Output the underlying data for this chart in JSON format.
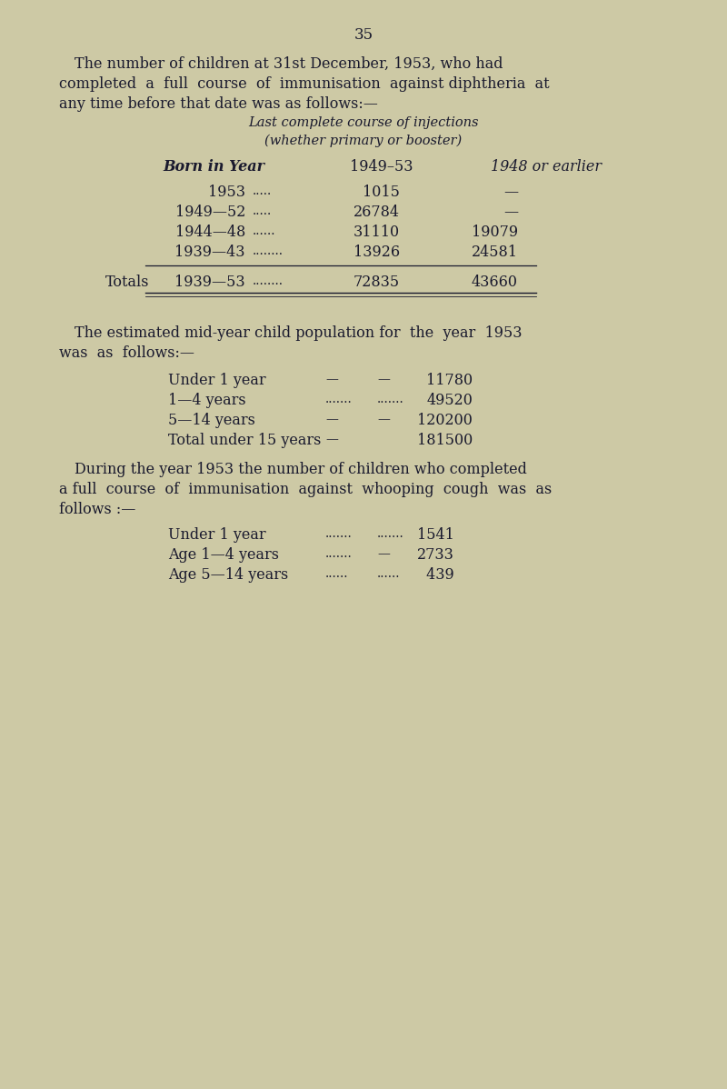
{
  "page_number": "35",
  "bg_color": "#cdc9a5",
  "text_color": "#1a1a2e",
  "lines_p1": [
    "The number of children at 31st December, 1953, who had",
    "completed  a  full  course  of  immunisation  against diphtheria  at",
    "any time before that date was as follows:—"
  ],
  "table1_hdr1": "Last complete course of injections",
  "table1_hdr2": "(whether primary or booster)",
  "col_hdr_biy": "Born in Year",
  "col_hdr_1": "1949–53",
  "col_hdr_2": "1948 or earlier",
  "table1_rows": [
    [
      "1953",
      ".....",
      "1015",
      "—"
    ],
    [
      "1949—52",
      ".....",
      "26784",
      "—"
    ],
    [
      "1944—48",
      "......",
      "31110",
      "19079"
    ],
    [
      "1939—43",
      "........",
      "13926",
      "24581"
    ]
  ],
  "totals_label": "Totals",
  "totals_row": [
    "1939—53",
    "........",
    "72835",
    "43660"
  ],
  "lines_p2": [
    "The estimated mid-year child population for  the  year  1953",
    "was  as  follows:—"
  ],
  "table2_rows": [
    [
      "Under 1 year",
      "—",
      "—",
      "11780"
    ],
    [
      "1—4 years",
      ".......",
      ".......",
      "49520"
    ],
    [
      "5—14 years",
      "—",
      "—",
      "120200"
    ],
    [
      "Total under 15 years",
      "—",
      "",
      "181500"
    ]
  ],
  "lines_p3": [
    "During the year 1953 the number of children who completed",
    "a full  course  of  immunisation  against  whooping  cough  was  as",
    "follows :—"
  ],
  "table3_rows": [
    [
      "Under 1 year",
      ".......",
      ".......",
      "1541"
    ],
    [
      "Age 1—4 years",
      ".......",
      "—",
      "2733"
    ],
    [
      "Age 5—14 years",
      "......",
      "......",
      " 439"
    ]
  ]
}
